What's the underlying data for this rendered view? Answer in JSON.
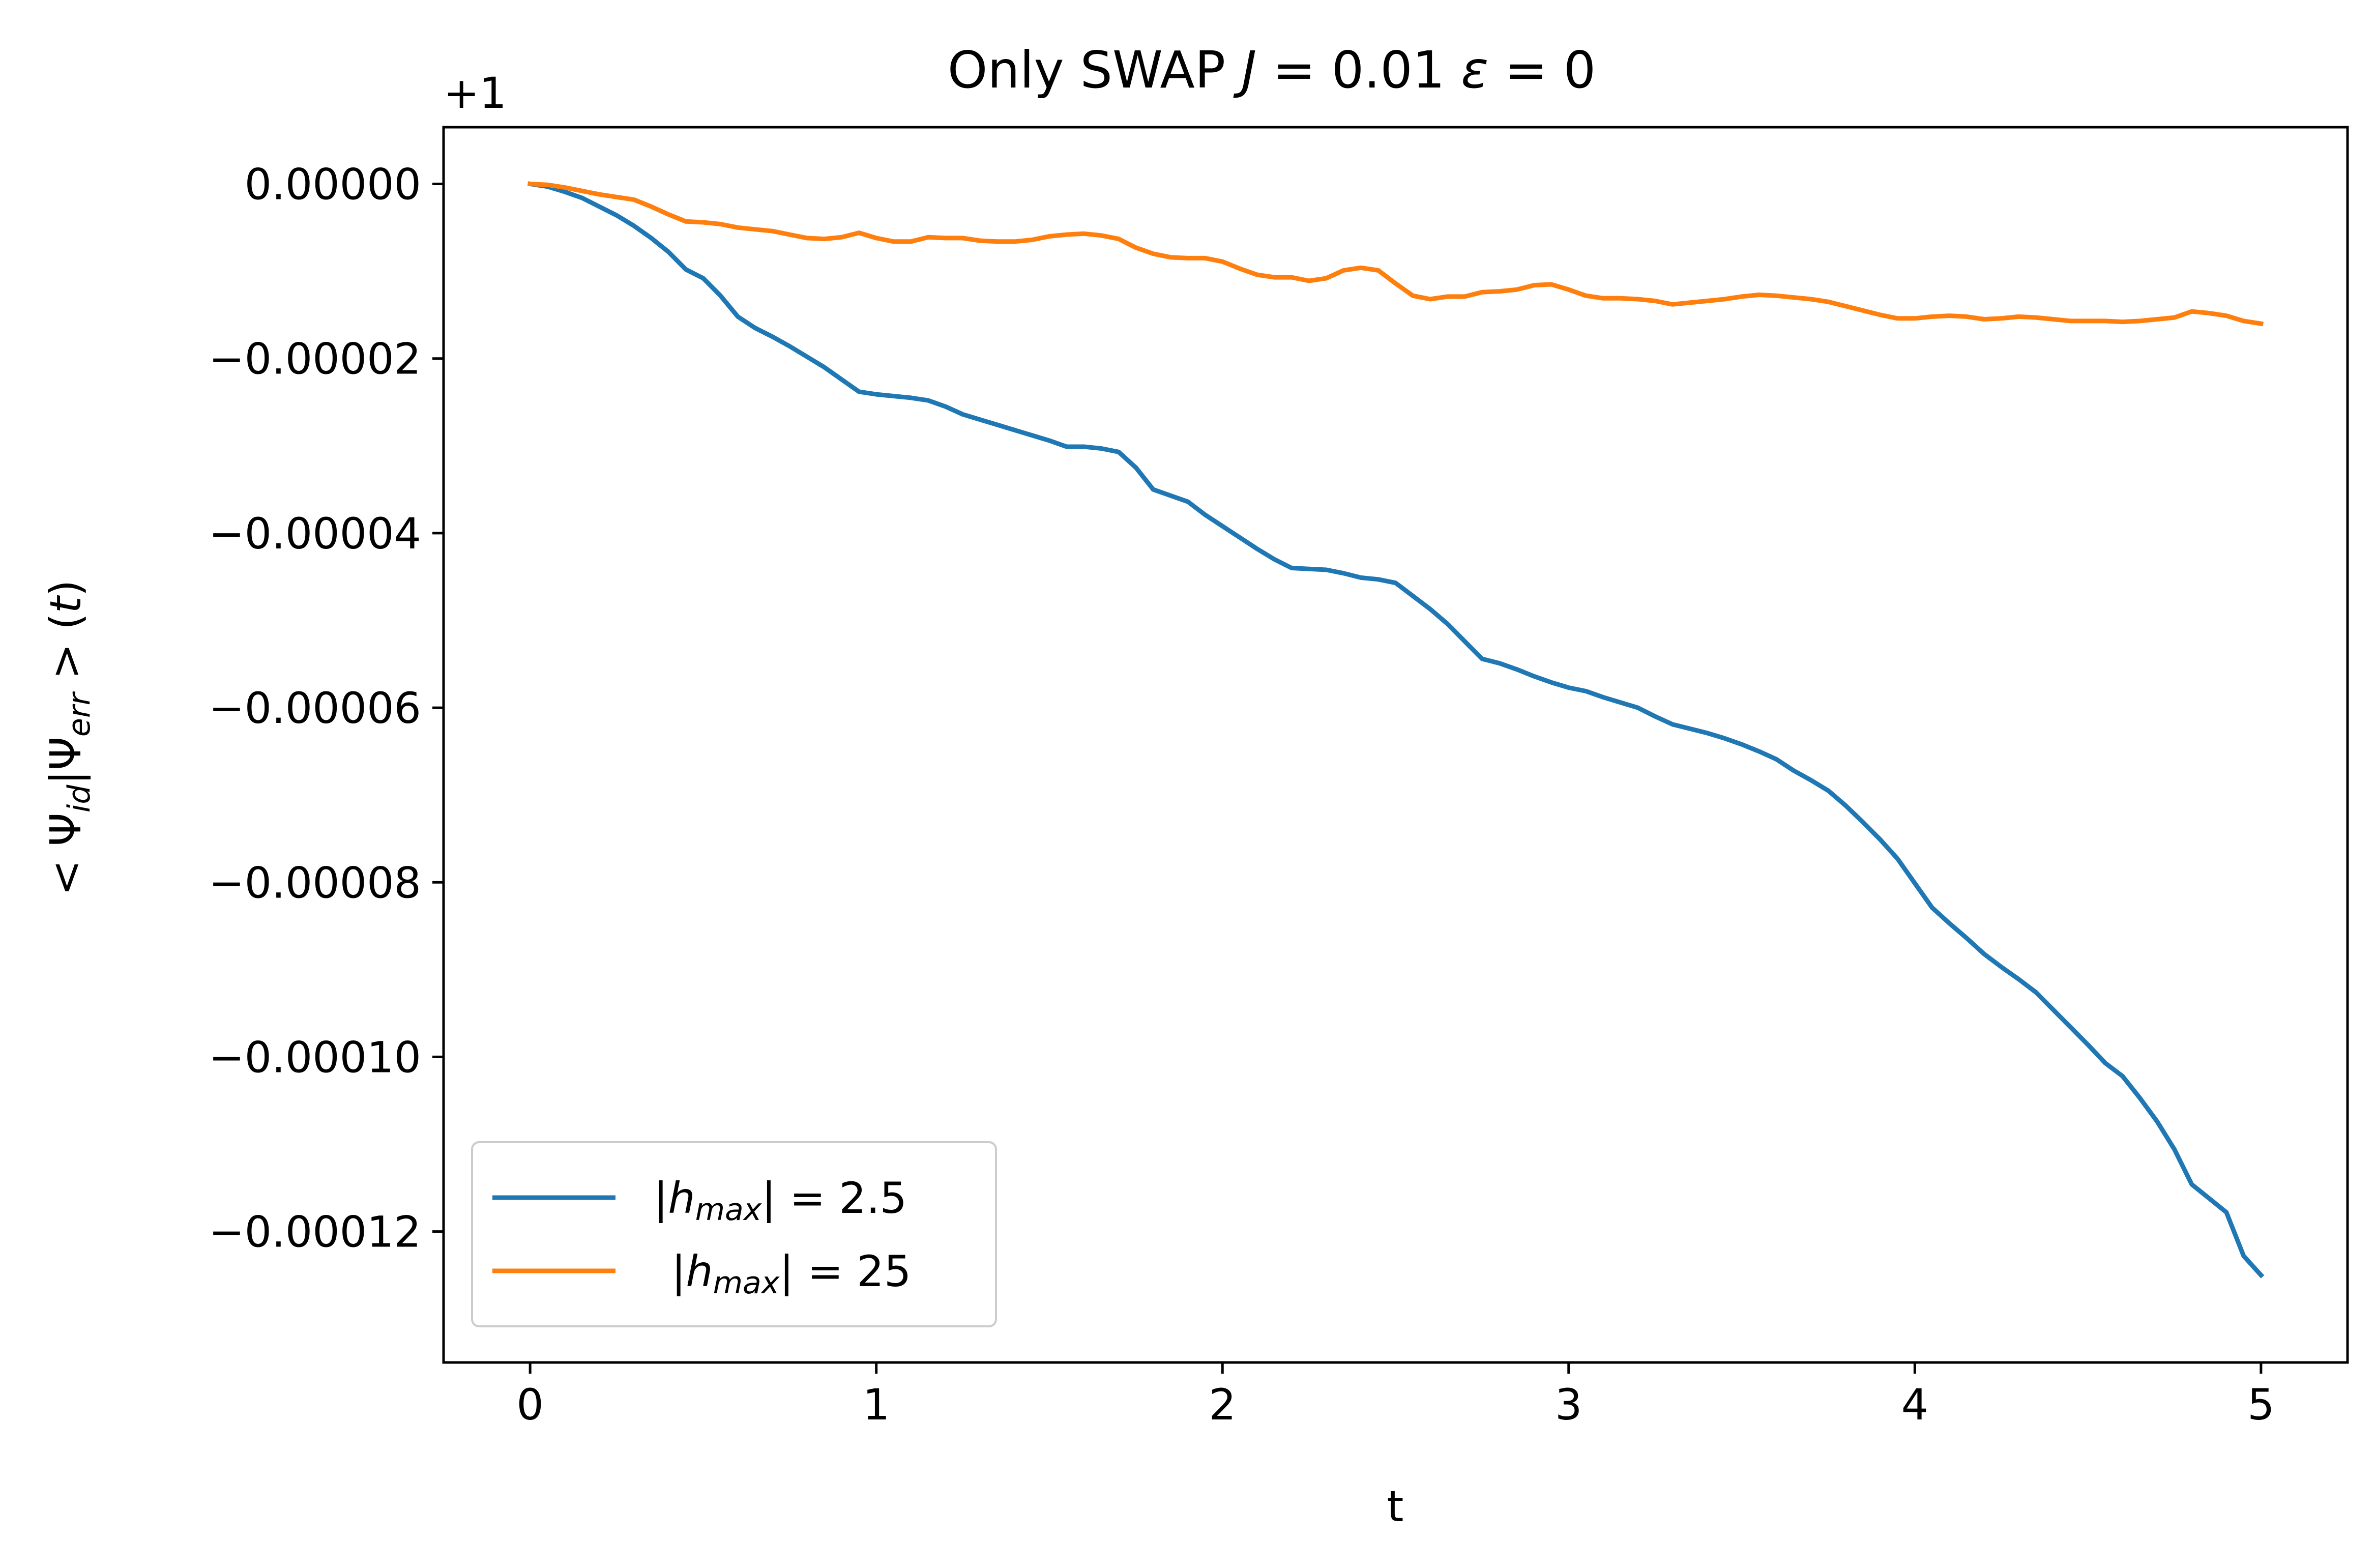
{
  "chart_data": {
    "type": "line",
    "title": "Only SWAP  J = 0.01  ε = 0",
    "title_parts": [
      "Only SWAP  ",
      "J",
      " = 0.01  ",
      "ε",
      " = 0"
    ],
    "xlabel": "t",
    "ylabel": "< Ψid|Ψerr > (t)",
    "ylabel_parts": [
      "< Ψ",
      "id",
      "|Ψ",
      "err",
      " > (",
      "t",
      ")"
    ],
    "offset_label": "+1",
    "xlim": [
      -0.25,
      5.25
    ],
    "ylim": [
      -0.000135,
      6.5e-06
    ],
    "xticks": [
      0,
      1,
      2,
      3,
      4,
      5
    ],
    "xtick_labels": [
      "0",
      "1",
      "2",
      "3",
      "4",
      "5"
    ],
    "yticks": [
      0,
      -2e-05,
      -4e-05,
      -6e-05,
      -8e-05,
      -0.0001,
      -0.00012
    ],
    "ytick_labels": [
      "0.00000",
      "−0.00002",
      "−0.00004",
      "−0.00006",
      "−0.00008",
      "−0.00010",
      "−0.00012"
    ],
    "grid": false,
    "legend_position": "lower-left",
    "series": [
      {
        "name": "|hmax| = 2.5",
        "legend_parts": [
          "|",
          "h",
          "max",
          "| = 2.5"
        ],
        "color": "#1f77b4",
        "x": [
          0,
          0.05,
          0.1,
          0.15,
          0.2,
          0.25,
          0.3,
          0.35,
          0.4,
          0.45,
          0.5,
          0.55,
          0.6,
          0.65,
          0.7,
          0.75,
          0.8,
          0.85,
          0.9,
          0.95,
          1.0,
          1.05,
          1.1,
          1.15,
          1.2,
          1.25,
          1.3,
          1.35,
          1.4,
          1.45,
          1.5,
          1.55,
          1.6,
          1.65,
          1.7,
          1.75,
          1.8,
          1.85,
          1.9,
          1.95,
          2.0,
          2.05,
          2.1,
          2.15,
          2.2,
          2.25,
          2.3,
          2.35,
          2.4,
          2.45,
          2.5,
          2.55,
          2.6,
          2.65,
          2.7,
          2.75,
          2.8,
          2.85,
          2.9,
          2.95,
          3.0,
          3.05,
          3.1,
          3.15,
          3.2,
          3.25,
          3.3,
          3.35,
          3.4,
          3.45,
          3.5,
          3.55,
          3.6,
          3.65,
          3.7,
          3.75,
          3.8,
          3.85,
          3.9,
          3.95,
          4.0,
          4.05,
          4.1,
          4.15,
          4.2,
          4.25,
          4.3,
          4.35,
          4.4,
          4.45,
          4.5,
          4.55,
          4.6,
          4.65,
          4.7,
          4.75,
          4.8,
          4.85,
          4.9,
          4.95,
          5.0
        ],
        "y": [
          0,
          -3e-07,
          -9e-07,
          -1.6e-06,
          -2.6e-06,
          -3.6e-06,
          -4.8e-06,
          -6.2e-06,
          -7.8e-06,
          -9.8e-06,
          -1.08e-05,
          -1.28e-05,
          -1.52e-05,
          -1.65e-05,
          -1.75e-05,
          -1.86e-05,
          -1.98e-05,
          -2.1e-05,
          -2.24e-05,
          -2.38e-05,
          -2.41e-05,
          -2.43e-05,
          -2.45e-05,
          -2.48e-05,
          -2.55e-05,
          -2.64e-05,
          -2.7e-05,
          -2.76e-05,
          -2.82e-05,
          -2.88e-05,
          -2.94e-05,
          -3.01e-05,
          -3.01e-05,
          -3.03e-05,
          -3.07e-05,
          -3.25e-05,
          -3.5e-05,
          -3.57e-05,
          -3.64e-05,
          -3.79e-05,
          -3.92e-05,
          -4.05e-05,
          -4.18e-05,
          -4.3e-05,
          -4.4e-05,
          -4.41e-05,
          -4.42e-05,
          -4.46e-05,
          -4.51e-05,
          -4.53e-05,
          -4.57e-05,
          -4.72e-05,
          -4.87e-05,
          -5.04e-05,
          -5.24e-05,
          -5.44e-05,
          -5.49e-05,
          -5.56e-05,
          -5.64e-05,
          -5.71e-05,
          -5.77e-05,
          -5.81e-05,
          -5.88e-05,
          -5.94e-05,
          -6e-05,
          -6.1e-05,
          -6.19e-05,
          -6.24e-05,
          -6.29e-05,
          -6.35e-05,
          -6.42e-05,
          -6.5e-05,
          -6.59e-05,
          -6.72e-05,
          -6.83e-05,
          -6.95e-05,
          -7.12e-05,
          -7.31e-05,
          -7.51e-05,
          -7.73e-05,
          -8.01e-05,
          -8.29e-05,
          -8.47e-05,
          -8.64e-05,
          -8.82e-05,
          -8.97e-05,
          -9.11e-05,
          -9.26e-05,
          -9.46e-05,
          -9.66e-05,
          -9.86e-05,
          -0.0001007,
          -0.0001022,
          -0.0001047,
          -0.0001074,
          -0.0001106,
          -0.0001146,
          -0.0001162,
          -0.0001178,
          -0.0001228,
          -0.000125
        ]
      },
      {
        "name": "|hmax| = 25",
        "legend_parts": [
          "|",
          "h",
          "max",
          "| = 25"
        ],
        "color": "#ff7f0e",
        "x": [
          0,
          0.05,
          0.1,
          0.15,
          0.2,
          0.25,
          0.3,
          0.35,
          0.4,
          0.45,
          0.5,
          0.55,
          0.6,
          0.65,
          0.7,
          0.75,
          0.8,
          0.85,
          0.9,
          0.95,
          1.0,
          1.05,
          1.1,
          1.15,
          1.2,
          1.25,
          1.3,
          1.35,
          1.4,
          1.45,
          1.5,
          1.55,
          1.6,
          1.65,
          1.7,
          1.75,
          1.8,
          1.85,
          1.9,
          1.95,
          2.0,
          2.05,
          2.1,
          2.15,
          2.2,
          2.25,
          2.3,
          2.35,
          2.4,
          2.45,
          2.5,
          2.55,
          2.6,
          2.65,
          2.7,
          2.75,
          2.8,
          2.85,
          2.9,
          2.95,
          3.0,
          3.05,
          3.1,
          3.15,
          3.2,
          3.25,
          3.3,
          3.35,
          3.4,
          3.45,
          3.5,
          3.55,
          3.6,
          3.65,
          3.7,
          3.75,
          3.8,
          3.85,
          3.9,
          3.95,
          4.0,
          4.05,
          4.1,
          4.15,
          4.2,
          4.25,
          4.3,
          4.35,
          4.4,
          4.45,
          4.5,
          4.55,
          4.6,
          4.65,
          4.7,
          4.75,
          4.8,
          4.85,
          4.9,
          4.95,
          5.0
        ],
        "y": [
          0,
          -1e-07,
          -4e-07,
          -8e-07,
          -1.2e-06,
          -1.5e-06,
          -1.8e-06,
          -2.6e-06,
          -3.5e-06,
          -4.3e-06,
          -4.4e-06,
          -4.6e-06,
          -5e-06,
          -5.2e-06,
          -5.4e-06,
          -5.8e-06,
          -6.2e-06,
          -6.3e-06,
          -6.1e-06,
          -5.6e-06,
          -6.2e-06,
          -6.6e-06,
          -6.6e-06,
          -6.1e-06,
          -6.2e-06,
          -6.2e-06,
          -6.5e-06,
          -6.6e-06,
          -6.6e-06,
          -6.4e-06,
          -6e-06,
          -5.8e-06,
          -5.7e-06,
          -5.9e-06,
          -6.3e-06,
          -7.3e-06,
          -8e-06,
          -8.4e-06,
          -8.5e-06,
          -8.5e-06,
          -8.9e-06,
          -9.7e-06,
          -1.04e-05,
          -1.07e-05,
          -1.07e-05,
          -1.11e-05,
          -1.08e-05,
          -9.9e-06,
          -9.6e-06,
          -9.9e-06,
          -1.14e-05,
          -1.28e-05,
          -1.32e-05,
          -1.29e-05,
          -1.29e-05,
          -1.24e-05,
          -1.23e-05,
          -1.21e-05,
          -1.16e-05,
          -1.15e-05,
          -1.21e-05,
          -1.28e-05,
          -1.31e-05,
          -1.31e-05,
          -1.32e-05,
          -1.34e-05,
          -1.38e-05,
          -1.36e-05,
          -1.34e-05,
          -1.32e-05,
          -1.29e-05,
          -1.27e-05,
          -1.28e-05,
          -1.3e-05,
          -1.32e-05,
          -1.35e-05,
          -1.4e-05,
          -1.45e-05,
          -1.5e-05,
          -1.54e-05,
          -1.54e-05,
          -1.52e-05,
          -1.51e-05,
          -1.52e-05,
          -1.55e-05,
          -1.54e-05,
          -1.52e-05,
          -1.53e-05,
          -1.55e-05,
          -1.57e-05,
          -1.57e-05,
          -1.57e-05,
          -1.58e-05,
          -1.57e-05,
          -1.55e-05,
          -1.53e-05,
          -1.46e-05,
          -1.48e-05,
          -1.51e-05,
          -1.57e-05,
          -1.6e-05
        ]
      }
    ]
  }
}
